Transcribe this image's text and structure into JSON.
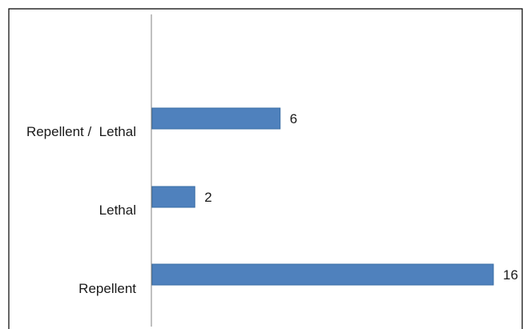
{
  "chart_data": {
    "type": "bar",
    "orientation": "horizontal",
    "categories": [
      "Repellent /  Lethal",
      "Lethal",
      "Repellent"
    ],
    "values": [
      6,
      2,
      16
    ],
    "title": "",
    "xlabel": "",
    "ylabel": "",
    "xlim": [
      0,
      16
    ],
    "grid": false,
    "legend": "none",
    "bar_color": "#4f81bd",
    "bar_border_color": "#3a6ea5",
    "axis_color": "#808080",
    "frame_color": "#000000"
  }
}
